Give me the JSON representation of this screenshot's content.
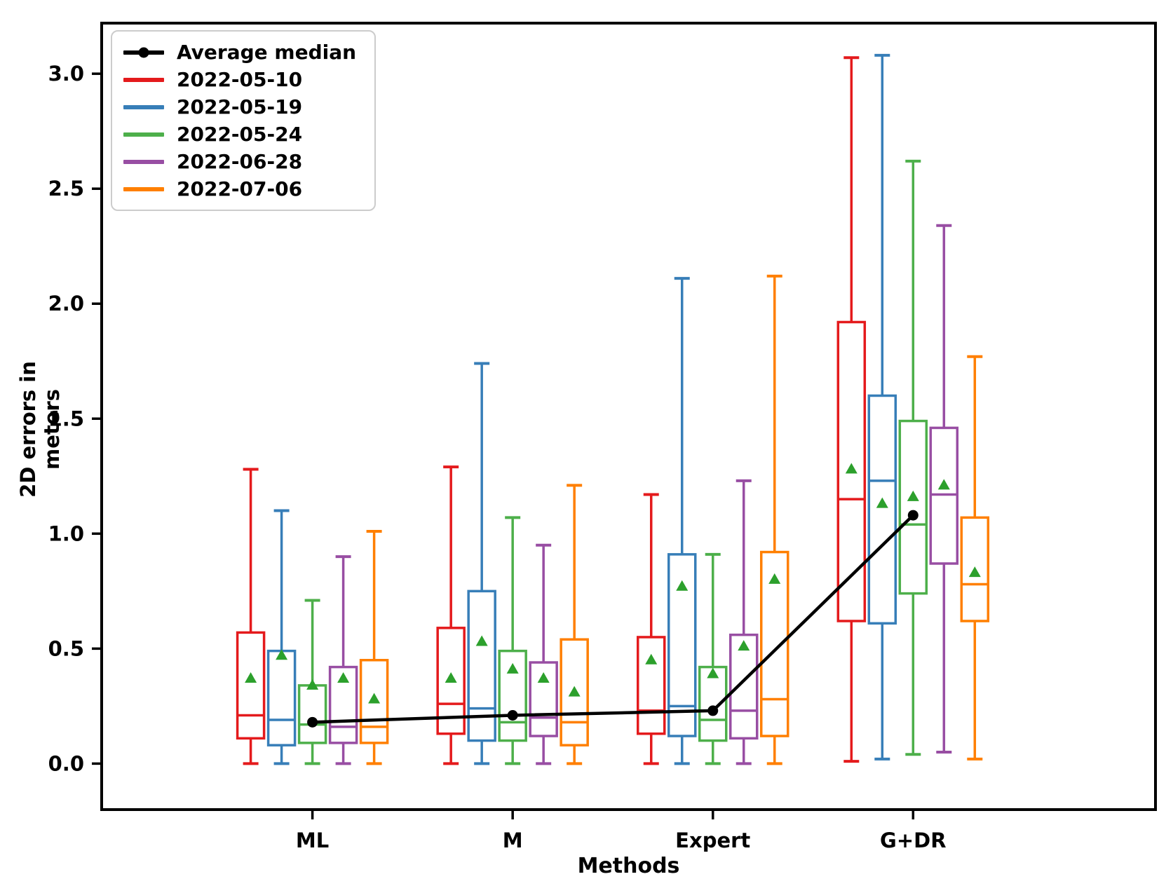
{
  "page": {
    "background": "#ffffff"
  },
  "chart_data": {
    "type": "boxplot",
    "title": "",
    "xlabel": "Methods",
    "ylabel": "2D errors in meters",
    "categories": [
      "ML",
      "M",
      "Expert",
      "G+DR"
    ],
    "ylim": [
      -0.2,
      3.22
    ],
    "yticks": [
      "0.0",
      "0.5",
      "1.0",
      "1.5",
      "2.0",
      "2.5",
      "3.0"
    ],
    "grid": false,
    "legend_position": "upper-left",
    "frame_color": "#000000",
    "mean_marker": {
      "shape": "triangle-up",
      "color": "#2ca02c"
    },
    "average_median_line": {
      "label": "Average median",
      "color": "#000000",
      "values": [
        0.18,
        0.21,
        0.23,
        1.08
      ]
    },
    "series": [
      {
        "name": "2022-05-10",
        "color": "#e41a1c",
        "boxes": [
          {
            "whisker_low": 0.0,
            "q1": 0.11,
            "median": 0.21,
            "q3": 0.57,
            "whisker_high": 1.28,
            "mean": 0.37
          },
          {
            "whisker_low": 0.0,
            "q1": 0.13,
            "median": 0.26,
            "q3": 0.59,
            "whisker_high": 1.29,
            "mean": 0.37
          },
          {
            "whisker_low": 0.0,
            "q1": 0.13,
            "median": 0.23,
            "q3": 0.55,
            "whisker_high": 1.17,
            "mean": 0.45
          },
          {
            "whisker_low": 0.01,
            "q1": 0.62,
            "median": 1.15,
            "q3": 1.92,
            "whisker_high": 3.07,
            "mean": 1.28
          }
        ]
      },
      {
        "name": "2022-05-19",
        "color": "#377eb8",
        "boxes": [
          {
            "whisker_low": 0.0,
            "q1": 0.08,
            "median": 0.19,
            "q3": 0.49,
            "whisker_high": 1.1,
            "mean": 0.47
          },
          {
            "whisker_low": 0.0,
            "q1": 0.1,
            "median": 0.24,
            "q3": 0.75,
            "whisker_high": 1.74,
            "mean": 0.53
          },
          {
            "whisker_low": 0.0,
            "q1": 0.12,
            "median": 0.25,
            "q3": 0.91,
            "whisker_high": 2.11,
            "mean": 0.77
          },
          {
            "whisker_low": 0.02,
            "q1": 0.61,
            "median": 1.23,
            "q3": 1.6,
            "whisker_high": 3.08,
            "mean": 1.13
          }
        ]
      },
      {
        "name": "2022-05-24",
        "color": "#4daf4a",
        "boxes": [
          {
            "whisker_low": 0.0,
            "q1": 0.09,
            "median": 0.17,
            "q3": 0.34,
            "whisker_high": 0.71,
            "mean": 0.34
          },
          {
            "whisker_low": 0.0,
            "q1": 0.1,
            "median": 0.18,
            "q3": 0.49,
            "whisker_high": 1.07,
            "mean": 0.41
          },
          {
            "whisker_low": 0.0,
            "q1": 0.1,
            "median": 0.19,
            "q3": 0.42,
            "whisker_high": 0.91,
            "mean": 0.39
          },
          {
            "whisker_low": 0.04,
            "q1": 0.74,
            "median": 1.04,
            "q3": 1.49,
            "whisker_high": 2.62,
            "mean": 1.16
          }
        ]
      },
      {
        "name": "2022-06-28",
        "color": "#984ea3",
        "boxes": [
          {
            "whisker_low": 0.0,
            "q1": 0.09,
            "median": 0.16,
            "q3": 0.42,
            "whisker_high": 0.9,
            "mean": 0.37
          },
          {
            "whisker_low": 0.0,
            "q1": 0.12,
            "median": 0.2,
            "q3": 0.44,
            "whisker_high": 0.95,
            "mean": 0.37
          },
          {
            "whisker_low": 0.0,
            "q1": 0.11,
            "median": 0.23,
            "q3": 0.56,
            "whisker_high": 1.23,
            "mean": 0.51
          },
          {
            "whisker_low": 0.05,
            "q1": 0.87,
            "median": 1.17,
            "q3": 1.46,
            "whisker_high": 2.34,
            "mean": 1.21
          }
        ]
      },
      {
        "name": "2022-07-06",
        "color": "#ff7f00",
        "boxes": [
          {
            "whisker_low": 0.0,
            "q1": 0.09,
            "median": 0.16,
            "q3": 0.45,
            "whisker_high": 1.01,
            "mean": 0.28
          },
          {
            "whisker_low": 0.0,
            "q1": 0.08,
            "median": 0.18,
            "q3": 0.54,
            "whisker_high": 1.21,
            "mean": 0.31
          },
          {
            "whisker_low": 0.0,
            "q1": 0.12,
            "median": 0.28,
            "q3": 0.92,
            "whisker_high": 2.12,
            "mean": 0.8
          },
          {
            "whisker_low": 0.02,
            "q1": 0.62,
            "median": 0.78,
            "q3": 1.07,
            "whisker_high": 1.77,
            "mean": 0.83
          }
        ]
      }
    ]
  }
}
